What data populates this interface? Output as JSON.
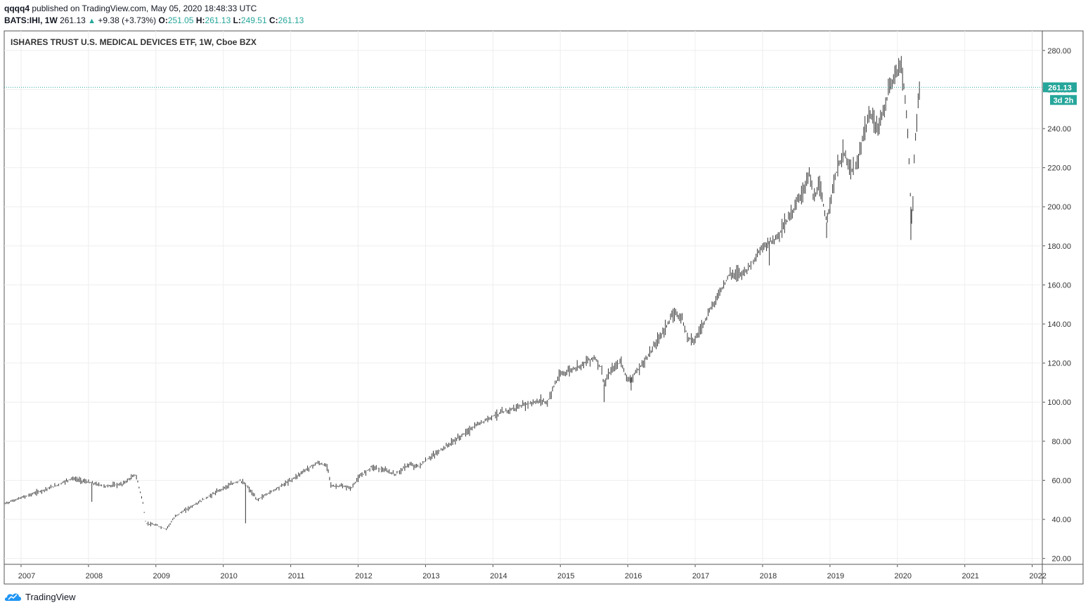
{
  "header": {
    "user": "qqqq4",
    "published": "published on TradingView.com, May 05, 2020 18:48:33 UTC",
    "symbol": "BATS:IHI, 1W",
    "last": "261.13",
    "change": "+9.38 (+3.73%)",
    "o_label": "O:",
    "o_value": "251.05",
    "h_label": "H:",
    "h_value": "261.13",
    "l_label": "L:",
    "l_value": "249.51",
    "c_label": "C:",
    "c_value": "261.13"
  },
  "price_tag": {
    "value": "261.13",
    "countdown": "3d 2h"
  },
  "footer": {
    "brand": "TradingView"
  },
  "colors": {
    "accent": "#26a69a",
    "candle": "#333333",
    "grid": "#eeeeee",
    "axis": "#555555"
  },
  "chart_data": {
    "type": "candlestick",
    "title": "ISHARES TRUST U.S. MEDICAL DEVICES ETF, 1W, Cboe BZX",
    "x_ticks": [
      "2007",
      "2008",
      "2009",
      "2010",
      "2011",
      "2012",
      "2013",
      "2014",
      "2015",
      "2016",
      "2017",
      "2018",
      "2019",
      "2020",
      "2021",
      "2022"
    ],
    "y_ticks": [
      "280.00",
      "260.00",
      "240.00",
      "220.00",
      "200.00",
      "180.00",
      "160.00",
      "140.00",
      "120.00",
      "100.00",
      "80.00",
      "60.00",
      "40.00",
      "20.00"
    ],
    "ylim": [
      17,
      290
    ],
    "xlim": [
      2006.75,
      2022.15
    ],
    "last_price": 261.13,
    "series": [
      {
        "values": [
          [
            2006.75,
            48
          ],
          [
            2007.0,
            51
          ],
          [
            2007.25,
            54
          ],
          [
            2007.5,
            57
          ],
          [
            2007.75,
            61
          ],
          [
            2008.0,
            59
          ],
          [
            2008.25,
            57
          ],
          [
            2008.5,
            58
          ],
          [
            2008.7,
            63
          ],
          [
            2008.8,
            50
          ],
          [
            2008.85,
            38
          ],
          [
            2009.0,
            37
          ],
          [
            2009.15,
            35
          ],
          [
            2009.3,
            42
          ],
          [
            2009.5,
            46
          ],
          [
            2009.75,
            51
          ],
          [
            2010.0,
            56
          ],
          [
            2010.25,
            60
          ],
          [
            2010.35,
            57
          ],
          [
            2010.5,
            50
          ],
          [
            2010.75,
            55
          ],
          [
            2011.0,
            60
          ],
          [
            2011.25,
            66
          ],
          [
            2011.4,
            69
          ],
          [
            2011.55,
            67
          ],
          [
            2011.6,
            57
          ],
          [
            2011.75,
            57
          ],
          [
            2011.9,
            56
          ],
          [
            2012.0,
            61
          ],
          [
            2012.2,
            67
          ],
          [
            2012.4,
            65
          ],
          [
            2012.55,
            63
          ],
          [
            2012.75,
            68
          ],
          [
            2012.9,
            67
          ],
          [
            2013.0,
            70
          ],
          [
            2013.25,
            76
          ],
          [
            2013.5,
            82
          ],
          [
            2013.75,
            88
          ],
          [
            2014.0,
            93
          ],
          [
            2014.25,
            96
          ],
          [
            2014.5,
            99
          ],
          [
            2014.75,
            101
          ],
          [
            2014.8,
            99
          ],
          [
            2014.9,
            108
          ],
          [
            2015.0,
            114
          ],
          [
            2015.25,
            118
          ],
          [
            2015.5,
            123
          ],
          [
            2015.6,
            118
          ],
          [
            2015.65,
            109
          ],
          [
            2015.75,
            116
          ],
          [
            2015.9,
            121
          ],
          [
            2016.0,
            111
          ],
          [
            2016.1,
            114
          ],
          [
            2016.25,
            121
          ],
          [
            2016.5,
            135
          ],
          [
            2016.7,
            146
          ],
          [
            2016.8,
            143
          ],
          [
            2016.9,
            133
          ],
          [
            2017.0,
            132
          ],
          [
            2017.25,
            149
          ],
          [
            2017.5,
            165
          ],
          [
            2017.75,
            167
          ],
          [
            2018.0,
            179
          ],
          [
            2018.1,
            182
          ],
          [
            2018.2,
            184
          ],
          [
            2018.4,
            195
          ],
          [
            2018.6,
            208
          ],
          [
            2018.7,
            218
          ],
          [
            2018.75,
            204
          ],
          [
            2018.85,
            210
          ],
          [
            2018.95,
            192
          ],
          [
            2019.0,
            203
          ],
          [
            2019.1,
            218
          ],
          [
            2019.2,
            228
          ],
          [
            2019.3,
            219
          ],
          [
            2019.4,
            220
          ],
          [
            2019.5,
            238
          ],
          [
            2019.6,
            247
          ],
          [
            2019.7,
            240
          ],
          [
            2019.8,
            250
          ],
          [
            2019.9,
            262
          ],
          [
            2020.0,
            270
          ],
          [
            2020.05,
            274
          ],
          [
            2020.1,
            261
          ],
          [
            2020.15,
            242
          ],
          [
            2020.2,
            200
          ],
          [
            2020.22,
            190
          ],
          [
            2020.25,
            225
          ],
          [
            2020.3,
            250
          ],
          [
            2020.33,
            261.13
          ]
        ]
      }
    ]
  }
}
